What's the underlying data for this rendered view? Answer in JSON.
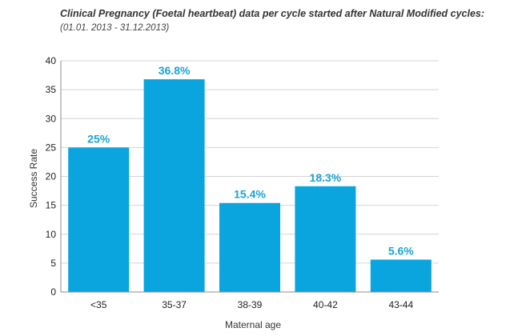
{
  "chart_data": {
    "type": "bar",
    "title": "Clinical Pregnancy (Foetal heartbeat) data per cycle started after Natural Modified cycles:",
    "subtitle": "(01.01. 2013 - 31.12.2013)",
    "categories": [
      "<35",
      "35-37",
      "38-39",
      "40-42",
      "43-44"
    ],
    "values": [
      25,
      36.8,
      15.4,
      18.3,
      5.6
    ],
    "data_labels": [
      "25%",
      "36.8%",
      "15.4%",
      "18.3%",
      "5.6%"
    ],
    "xlabel": "Maternal age",
    "ylabel": "Success Rate",
    "ylim": [
      0,
      40
    ],
    "yticks": [
      0,
      5,
      10,
      15,
      20,
      25,
      30,
      35,
      40
    ],
    "grid": true,
    "legend": "none",
    "colors": {
      "bar": "#0aa5de",
      "label": "#1aa3d6",
      "grid": "#d4d4d4",
      "axis": "#8c8c8c"
    }
  }
}
